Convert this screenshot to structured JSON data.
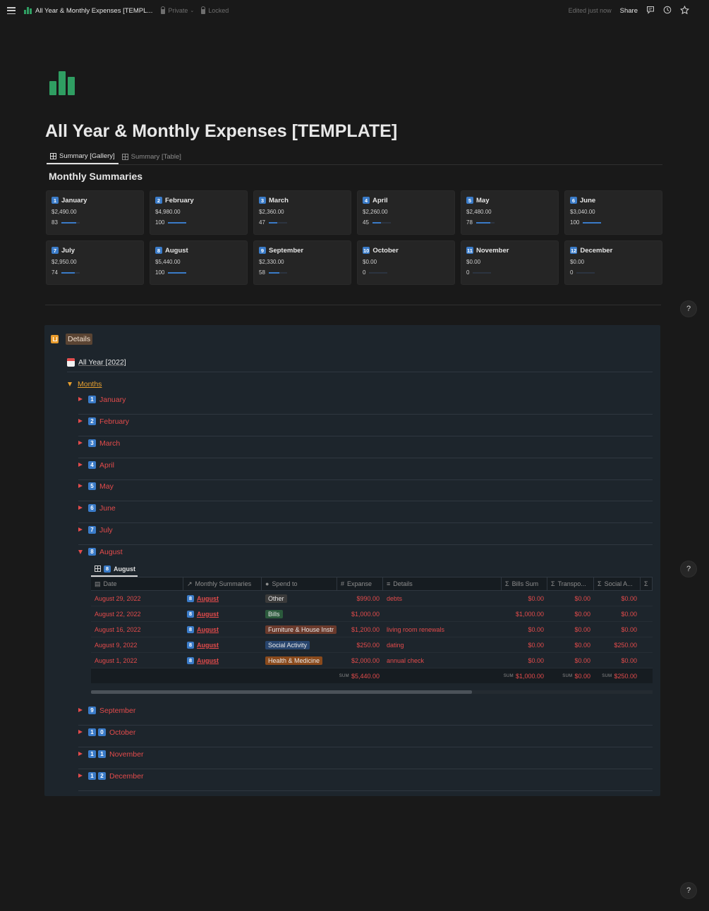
{
  "topbar": {
    "title": "All Year & Monthly Expenses [TEMPL...",
    "privacy": "Private",
    "locked": "Locked",
    "edited": "Edited just now",
    "share": "Share"
  },
  "page": {
    "title": "All Year & Monthly Expenses [TEMPLATE]",
    "tabs": [
      {
        "label": "Summary [Gallery]"
      },
      {
        "label": "Summary [Table]"
      }
    ],
    "section_title": "Monthly Summaries"
  },
  "cards": [
    {
      "num": "1",
      "name": "January",
      "amount": "$2,490.00",
      "progress": "83",
      "fill": 0.83
    },
    {
      "num": "2",
      "name": "February",
      "amount": "$4,980.00",
      "progress": "100",
      "fill": 1.0
    },
    {
      "num": "3",
      "name": "March",
      "amount": "$2,360.00",
      "progress": "47",
      "fill": 0.47
    },
    {
      "num": "4",
      "name": "April",
      "amount": "$2,260.00",
      "progress": "45",
      "fill": 0.45
    },
    {
      "num": "5",
      "name": "May",
      "amount": "$2,480.00",
      "progress": "78",
      "fill": 0.78
    },
    {
      "num": "6",
      "name": "June",
      "amount": "$3,040.00",
      "progress": "100",
      "fill": 1.0
    },
    {
      "num": "7",
      "name": "July",
      "amount": "$2,950.00",
      "progress": "74",
      "fill": 0.74
    },
    {
      "num": "8",
      "name": "August",
      "amount": "$5,440.00",
      "progress": "100",
      "fill": 1.0
    },
    {
      "num": "9",
      "name": "September",
      "amount": "$2,330.00",
      "progress": "58",
      "fill": 0.58
    },
    {
      "num": "10",
      "name": "October",
      "amount": "$0.00",
      "progress": "0",
      "fill": 0
    },
    {
      "num": "11",
      "name": "November",
      "amount": "$0.00",
      "progress": "0",
      "fill": 0
    },
    {
      "num": "12",
      "name": "December",
      "amount": "$0.00",
      "progress": "0",
      "fill": 0
    }
  ],
  "details": {
    "label": "Details",
    "all_year": "All Year [2022]",
    "months_label": "Months",
    "months": [
      {
        "nums": [
          "1"
        ],
        "name": "January"
      },
      {
        "nums": [
          "2"
        ],
        "name": "February"
      },
      {
        "nums": [
          "3"
        ],
        "name": "March"
      },
      {
        "nums": [
          "4"
        ],
        "name": "April"
      },
      {
        "nums": [
          "5"
        ],
        "name": "May"
      },
      {
        "nums": [
          "6"
        ],
        "name": "June"
      },
      {
        "nums": [
          "7"
        ],
        "name": "July"
      },
      {
        "nums": [
          "8"
        ],
        "name": "August"
      },
      {
        "nums": [
          "9"
        ],
        "name": "September"
      },
      {
        "nums": [
          "1",
          "0"
        ],
        "name": "October"
      },
      {
        "nums": [
          "1",
          "1"
        ],
        "name": "November"
      },
      {
        "nums": [
          "1",
          "2"
        ],
        "name": "December"
      }
    ],
    "august_view": {
      "num": "8",
      "label": "August"
    },
    "columns": [
      "Date",
      "Monthly Summaries",
      "Spend to",
      "Expanse",
      "Details",
      "Bills Sum",
      "Transpo...",
      "Social A..."
    ],
    "rows": [
      {
        "date": "August 29, 2022",
        "summary_num": "8",
        "summary": "August",
        "spend": "Other",
        "spend_color": "#3a3a3a",
        "amount": "$990.00",
        "details": "debts",
        "bills": "$0.00",
        "transpo": "$0.00",
        "social": "$0.00"
      },
      {
        "date": "August 22, 2022",
        "summary_num": "8",
        "summary": "August",
        "spend": "Bills",
        "spend_color": "#2b5a3c",
        "amount": "$1,000.00",
        "details": "",
        "bills": "$1,000.00",
        "transpo": "$0.00",
        "social": "$0.00"
      },
      {
        "date": "August 16, 2022",
        "summary_num": "8",
        "summary": "August",
        "spend": "Furniture & House Instr",
        "spend_color": "#6a3a2c",
        "amount": "$1,200.00",
        "details": "living room renewals",
        "bills": "$0.00",
        "transpo": "$0.00",
        "social": "$0.00"
      },
      {
        "date": "August 9, 2022",
        "summary_num": "8",
        "summary": "August",
        "spend": "Social Activity",
        "spend_color": "#28456e",
        "amount": "$250.00",
        "details": "dating",
        "bills": "$0.00",
        "transpo": "$0.00",
        "social": "$250.00"
      },
      {
        "date": "August 1, 2022",
        "summary_num": "8",
        "summary": "August",
        "spend": "Health & Medicine",
        "spend_color": "#8a4a1c",
        "amount": "$2,000.00",
        "details": "annual check",
        "bills": "$0.00",
        "transpo": "$0.00",
        "social": "$0.00"
      }
    ],
    "sum_label": "SUM",
    "totals": {
      "amount": "$5,440.00",
      "bills": "$1,000.00",
      "transpo": "$0.00",
      "social": "$250.00"
    }
  },
  "icons": {
    "menu": "hamburger-icon",
    "comments": "comment-icon",
    "history": "clock-icon",
    "favorite": "star-icon",
    "help": "?"
  },
  "colors": {
    "accent_blue": "#3a7bc8",
    "month_red": "#e34b4b",
    "months_orange": "#e8a02e",
    "page_icon_green": "#2f9e62"
  }
}
